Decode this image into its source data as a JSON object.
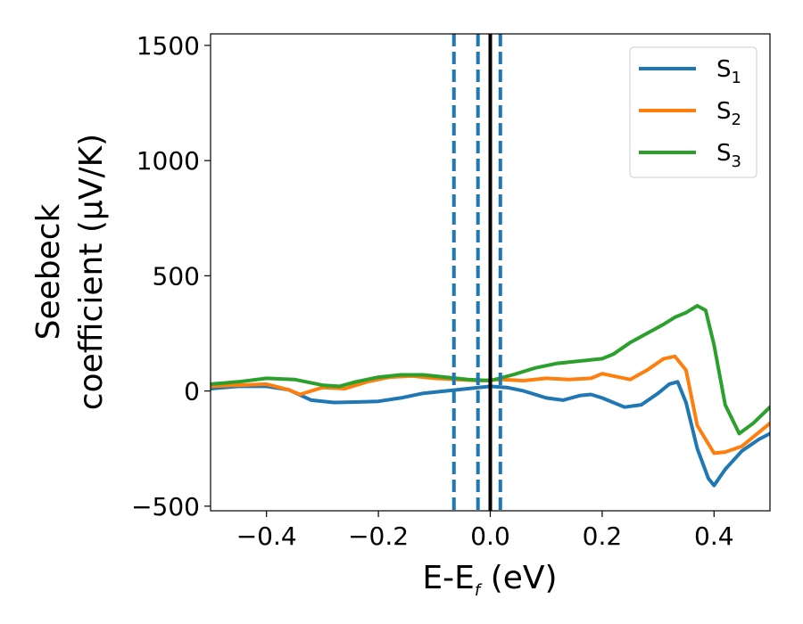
{
  "chart_data": {
    "type": "line",
    "xlabel": "E-E",
    "xlabel_sub": "f",
    "xlabel_unit": " (eV)",
    "ylabel_line1": "Seebeck",
    "ylabel_line2": "coefficient  (μV/K)",
    "xlim": [
      -0.5,
      0.5
    ],
    "ylim": [
      -520,
      1550
    ],
    "xticks": [
      -0.4,
      -0.2,
      0.0,
      0.2,
      0.4
    ],
    "xtick_labels": [
      "−0.4",
      "−0.2",
      "0.0",
      "0.2",
      "0.4"
    ],
    "yticks": [
      -500,
      0,
      500,
      1000,
      1500
    ],
    "ytick_labels": [
      "−500",
      "0",
      "500",
      "1000",
      "1500"
    ],
    "grid": false,
    "legend_position": "top-right",
    "vertical_lines": [
      {
        "x": -0.065,
        "style": "dashed",
        "color": "#1f77b4"
      },
      {
        "x": -0.022,
        "style": "dashed",
        "color": "#1f77b4"
      },
      {
        "x": 0.018,
        "style": "dashed",
        "color": "#1f77b4"
      },
      {
        "x": 0.0,
        "style": "solid",
        "color": "#000000"
      }
    ],
    "series": [
      {
        "name": "S",
        "name_sub": "1",
        "color": "#1f77b4",
        "x": [
          -0.5,
          -0.45,
          -0.4,
          -0.36,
          -0.32,
          -0.28,
          -0.24,
          -0.2,
          -0.16,
          -0.12,
          -0.08,
          -0.04,
          0.0,
          0.03,
          0.06,
          0.1,
          0.13,
          0.16,
          0.18,
          0.2,
          0.24,
          0.27,
          0.3,
          0.32,
          0.335,
          0.35,
          0.37,
          0.39,
          0.4,
          0.42,
          0.45,
          0.48,
          0.5
        ],
        "values": [
          10,
          20,
          20,
          5,
          -40,
          -50,
          -48,
          -45,
          -30,
          -10,
          0,
          10,
          20,
          15,
          0,
          -30,
          -40,
          -20,
          -15,
          -30,
          -70,
          -60,
          -10,
          30,
          40,
          -50,
          -250,
          -380,
          -410,
          -340,
          -260,
          -210,
          -185
        ]
      },
      {
        "name": "S",
        "name_sub": "2",
        "color": "#ff7f0e",
        "x": [
          -0.5,
          -0.45,
          -0.4,
          -0.36,
          -0.34,
          -0.3,
          -0.26,
          -0.22,
          -0.18,
          -0.14,
          -0.1,
          -0.06,
          -0.02,
          0.02,
          0.06,
          0.1,
          0.14,
          0.18,
          0.2,
          0.22,
          0.25,
          0.28,
          0.31,
          0.33,
          0.35,
          0.37,
          0.4,
          0.42,
          0.45,
          0.48,
          0.5
        ],
        "values": [
          20,
          25,
          30,
          5,
          -15,
          15,
          10,
          40,
          60,
          65,
          55,
          50,
          45,
          50,
          45,
          55,
          50,
          55,
          75,
          65,
          50,
          90,
          140,
          150,
          90,
          -150,
          -270,
          -265,
          -240,
          -180,
          -140
        ]
      },
      {
        "name": "S",
        "name_sub": "3",
        "color": "#2ca02c",
        "x": [
          -0.5,
          -0.45,
          -0.4,
          -0.35,
          -0.3,
          -0.27,
          -0.24,
          -0.2,
          -0.16,
          -0.12,
          -0.08,
          -0.04,
          0.0,
          0.04,
          0.08,
          0.12,
          0.16,
          0.2,
          0.22,
          0.25,
          0.28,
          0.31,
          0.33,
          0.35,
          0.37,
          0.385,
          0.4,
          0.42,
          0.445,
          0.47,
          0.5
        ],
        "values": [
          30,
          40,
          55,
          50,
          25,
          20,
          40,
          60,
          70,
          70,
          60,
          50,
          45,
          70,
          100,
          120,
          130,
          140,
          160,
          210,
          250,
          290,
          320,
          340,
          370,
          350,
          200,
          -60,
          -185,
          -140,
          -70
        ]
      }
    ]
  }
}
